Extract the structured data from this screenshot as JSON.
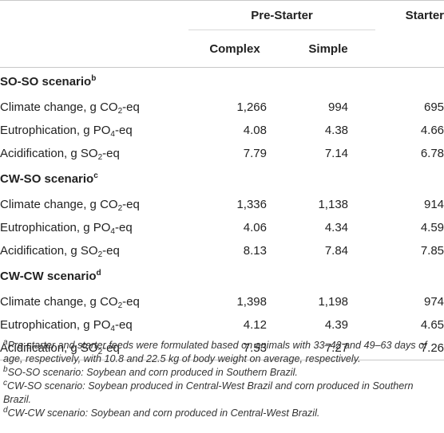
{
  "header": {
    "group_pre_starter": "Pre-Starter",
    "group_starter": "Starter",
    "col_complex": "Complex",
    "col_simple": "Simple"
  },
  "sections": [
    {
      "title": "SO-SO scenario",
      "sup": "b",
      "rows": [
        {
          "label_pre": "Climate change, g CO",
          "label_sub": "2",
          "label_post": "-eq",
          "complex": "1,266",
          "simple": "994",
          "starter": "695"
        },
        {
          "label_pre": "Eutrophication, g PO",
          "label_sub": "4",
          "label_post": "-eq",
          "complex": "4.08",
          "simple": "4.38",
          "starter": "4.66"
        },
        {
          "label_pre": "Acidification, g SO",
          "label_sub": "2",
          "label_post": "-eq",
          "complex": "7.79",
          "simple": "7.14",
          "starter": "6.78"
        }
      ]
    },
    {
      "title": "CW-SO scenario",
      "sup": "c",
      "rows": [
        {
          "label_pre": "Climate change, g CO",
          "label_sub": "2",
          "label_post": "-eq",
          "complex": "1,336",
          "simple": "1,138",
          "starter": "914"
        },
        {
          "label_pre": "Eutrophication, g PO",
          "label_sub": "4",
          "label_post": "-eq",
          "complex": "4.06",
          "simple": "4.34",
          "starter": "4.59"
        },
        {
          "label_pre": "Acidification, g SO",
          "label_sub": "2",
          "label_post": "-eq",
          "complex": "8.13",
          "simple": "7.84",
          "starter": "7.85"
        }
      ]
    },
    {
      "title": "CW-CW scenario",
      "sup": "d",
      "rows": [
        {
          "label_pre": "Climate change, g CO",
          "label_sub": "2",
          "label_post": "-eq",
          "complex": "1,398",
          "simple": "1,198",
          "starter": "974"
        },
        {
          "label_pre": "Eutrophication, g PO",
          "label_sub": "4",
          "label_post": "-eq",
          "complex": "4.12",
          "simple": "4.39",
          "starter": "4.65"
        },
        {
          "label_pre": "Acidification, g SO",
          "label_sub": "2",
          "label_post": "-eq",
          "complex": "7.53",
          "simple": "7.27",
          "starter": "7.26"
        }
      ]
    }
  ],
  "footnotes": {
    "a_mark": "a",
    "a_text": "Pre-starter and starter feeds were formulated based on animals with 33–42 and 49–63 days of age, respectively, with 10.8 and 22.5 kg of body weight on average, respectively.",
    "b_mark": "b",
    "b_text": "SO-SO scenario: Soybean and corn produced in Southern Brazil.",
    "c_mark": "c",
    "c_text": "CW-SO scenario: Soybean produced in Central-West Brazil and corn produced in Southern Brazil.",
    "d_mark": "d",
    "d_text": "CW-CW scenario: Soybean and corn produced in Central-West Brazil."
  }
}
